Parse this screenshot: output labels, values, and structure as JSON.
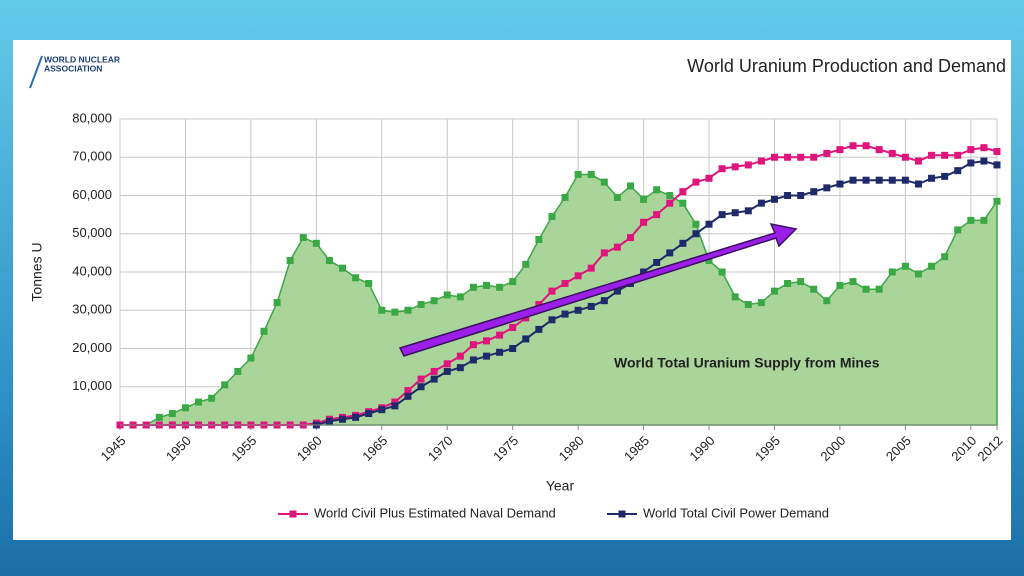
{
  "logo": {
    "line1": "WORLD NUCLEAR",
    "line2": "ASSOCIATION"
  },
  "chart_data": {
    "type": "line",
    "title": "World Uranium Production and Demand",
    "x_label": "Year",
    "y_label": "Tonnes U",
    "annotation": "World Total Uranium Supply from Mines",
    "x": [
      1945,
      1946,
      1947,
      1948,
      1949,
      1950,
      1951,
      1952,
      1953,
      1954,
      1955,
      1956,
      1957,
      1958,
      1959,
      1960,
      1961,
      1962,
      1963,
      1964,
      1965,
      1966,
      1967,
      1968,
      1969,
      1970,
      1971,
      1972,
      1973,
      1974,
      1975,
      1976,
      1977,
      1978,
      1979,
      1980,
      1981,
      1982,
      1983,
      1984,
      1985,
      1986,
      1987,
      1988,
      1989,
      1990,
      1991,
      1992,
      1993,
      1994,
      1995,
      1996,
      1997,
      1998,
      1999,
      2000,
      2001,
      2002,
      2003,
      2004,
      2005,
      2006,
      2007,
      2008,
      2009,
      2010,
      2011,
      2012
    ],
    "xlim": [
      1945,
      2012
    ],
    "xticks": [
      1945,
      1950,
      1955,
      1960,
      1965,
      1970,
      1975,
      1980,
      1985,
      1990,
      1995,
      2000,
      2005,
      2010,
      2012
    ],
    "ylim": [
      0,
      80000
    ],
    "yticks": [
      {
        "value": 10000,
        "label": "10,000"
      },
      {
        "value": 20000,
        "label": "20,000"
      },
      {
        "value": 30000,
        "label": "30,000"
      },
      {
        "value": 40000,
        "label": "40,000"
      },
      {
        "value": 50000,
        "label": "50,000"
      },
      {
        "value": 60000,
        "label": "60,000"
      },
      {
        "value": 70000,
        "label": "70,000"
      },
      {
        "value": 80000,
        "label": "80,000"
      }
    ],
    "grid": true,
    "series": [
      {
        "name": "World Total Uranium Supply from Mines",
        "style": "area",
        "color": "#3aa845",
        "fill": "#a9d59b",
        "values": [
          0,
          0,
          0,
          2000,
          3000,
          4500,
          6000,
          7000,
          10500,
          14000,
          17500,
          24500,
          32000,
          43000,
          49000,
          47500,
          43000,
          41000,
          38500,
          37000,
          30000,
          29500,
          30000,
          31500,
          32500,
          34000,
          33500,
          36000,
          36500,
          36000,
          37500,
          42000,
          48500,
          54500,
          59500,
          65500,
          65500,
          63500,
          59500,
          62500,
          59000,
          61500,
          60000,
          58000,
          52500,
          43000,
          40000,
          33500,
          31500,
          32000,
          35000,
          37000,
          37500,
          35500,
          32500,
          36500,
          37500,
          35500,
          35500,
          40000,
          41500,
          39500,
          41500,
          44000,
          51000,
          53500,
          53500,
          58500
        ]
      },
      {
        "name": "World Civil Plus Estimated Naval Demand",
        "style": "line",
        "color": "#e0147d",
        "values": [
          0,
          0,
          0,
          0,
          0,
          0,
          0,
          0,
          0,
          0,
          0,
          0,
          0,
          0,
          0,
          500,
          1500,
          2000,
          2500,
          3500,
          4500,
          6000,
          9000,
          12000,
          14000,
          16000,
          18000,
          21000,
          22000,
          23500,
          25500,
          28000,
          31500,
          35000,
          37000,
          39000,
          41000,
          45000,
          46500,
          49000,
          53000,
          55000,
          58000,
          61000,
          63500,
          64500,
          67000,
          67500,
          68000,
          69000,
          70000,
          70000,
          70000,
          70000,
          71000,
          72000,
          73000,
          73000,
          72000,
          71000,
          70000,
          69000,
          70500,
          70500,
          70500,
          72000,
          72500,
          71500
        ]
      },
      {
        "name": "World Total Civil Power Demand",
        "style": "line",
        "color": "#1f2a6b",
        "values": [
          null,
          null,
          null,
          null,
          null,
          null,
          null,
          null,
          null,
          null,
          null,
          null,
          null,
          null,
          null,
          0,
          1000,
          1500,
          2000,
          3000,
          4000,
          5000,
          7500,
          10000,
          12000,
          14000,
          15000,
          17000,
          18000,
          19000,
          20000,
          22500,
          25000,
          27500,
          29000,
          30000,
          31000,
          32500,
          35000,
          37000,
          40000,
          42500,
          45000,
          47500,
          50000,
          52500,
          55000,
          55500,
          56000,
          58000,
          59000,
          60000,
          60000,
          61000,
          62000,
          63000,
          64000,
          64000,
          64000,
          64000,
          64000,
          63000,
          64500,
          65000,
          66500,
          68500,
          69000,
          68000
        ]
      }
    ]
  }
}
